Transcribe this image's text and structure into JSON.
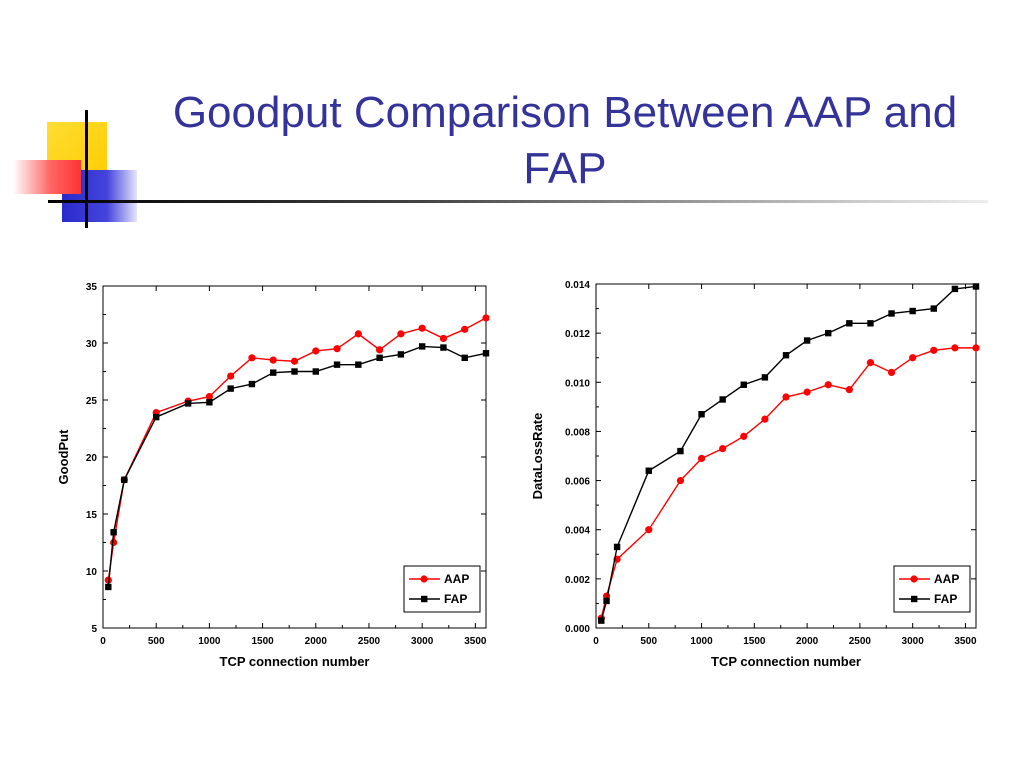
{
  "slide": {
    "title": "Goodput Comparison Between AAP and FAP"
  },
  "colors": {
    "title": "#333399",
    "aap": "#ff0000",
    "fap": "#000000",
    "deco_yellow": "#ffcc00",
    "deco_blue": "#3333cc",
    "deco_red": "#ff3333"
  },
  "chart_data": [
    {
      "type": "line",
      "title": "",
      "xlabel": "TCP connection number",
      "ylabel": "GoodPut",
      "xlim": [
        0,
        3600
      ],
      "ylim": [
        5,
        35
      ],
      "xticks": [
        0,
        500,
        1000,
        1500,
        2000,
        2500,
        3000,
        3500
      ],
      "yticks": [
        5,
        10,
        15,
        20,
        25,
        30,
        35
      ],
      "ytick_labels": [
        "5",
        "10",
        "15",
        "20",
        "25",
        "30",
        "35"
      ],
      "legend_position": "bottom-right",
      "series": [
        {
          "name": "AAP",
          "marker": "circle",
          "color": "#ff0000",
          "x": [
            50,
            100,
            200,
            500,
            800,
            1000,
            1200,
            1400,
            1600,
            1800,
            2000,
            2200,
            2400,
            2600,
            2800,
            3000,
            3200,
            3400,
            3600
          ],
          "y": [
            9.2,
            12.5,
            18.0,
            23.9,
            24.9,
            25.3,
            27.1,
            28.7,
            28.5,
            28.4,
            29.3,
            29.5,
            30.8,
            29.4,
            30.8,
            31.3,
            30.4,
            31.2,
            32.2
          ]
        },
        {
          "name": "FAP",
          "marker": "square",
          "color": "#000000",
          "x": [
            50,
            100,
            200,
            500,
            800,
            1000,
            1200,
            1400,
            1600,
            1800,
            2000,
            2200,
            2400,
            2600,
            2800,
            3000,
            3200,
            3400,
            3600
          ],
          "y": [
            8.6,
            13.4,
            18.0,
            23.5,
            24.7,
            24.8,
            26.0,
            26.4,
            27.4,
            27.5,
            27.5,
            28.1,
            28.1,
            28.7,
            29.0,
            29.7,
            29.6,
            28.7,
            29.1
          ]
        }
      ]
    },
    {
      "type": "line",
      "title": "",
      "xlabel": "TCP connection number",
      "ylabel": "DataLossRate",
      "xlim": [
        0,
        3600
      ],
      "ylim": [
        0,
        0.014
      ],
      "xticks": [
        0,
        500,
        1000,
        1500,
        2000,
        2500,
        3000,
        3500
      ],
      "yticks": [
        0,
        0.002,
        0.004,
        0.006,
        0.008,
        0.01,
        0.012,
        0.014
      ],
      "ytick_labels": [
        "0.000",
        "0.002",
        "0.004",
        "0.006",
        "0.008",
        "0.010",
        "0.012",
        "0.014"
      ],
      "legend_position": "bottom-right",
      "series": [
        {
          "name": "AAP",
          "marker": "circle",
          "color": "#ff0000",
          "x": [
            50,
            100,
            200,
            500,
            800,
            1000,
            1200,
            1400,
            1600,
            1800,
            2000,
            2200,
            2400,
            2600,
            2800,
            3000,
            3200,
            3400,
            3600
          ],
          "y": [
            0.0004,
            0.0013,
            0.0028,
            0.004,
            0.006,
            0.0069,
            0.0073,
            0.0078,
            0.0085,
            0.0094,
            0.0096,
            0.0099,
            0.0097,
            0.0108,
            0.0104,
            0.011,
            0.0113,
            0.0114,
            0.0114
          ]
        },
        {
          "name": "FAP",
          "marker": "square",
          "color": "#000000",
          "x": [
            50,
            100,
            200,
            500,
            800,
            1000,
            1200,
            1400,
            1600,
            1800,
            2000,
            2200,
            2400,
            2600,
            2800,
            3000,
            3200,
            3400,
            3600
          ],
          "y": [
            0.0003,
            0.0011,
            0.0033,
            0.0064,
            0.0072,
            0.0087,
            0.0093,
            0.0099,
            0.0102,
            0.0111,
            0.0117,
            0.012,
            0.0124,
            0.0124,
            0.0128,
            0.0129,
            0.013,
            0.0138,
            0.0139
          ]
        }
      ]
    }
  ]
}
